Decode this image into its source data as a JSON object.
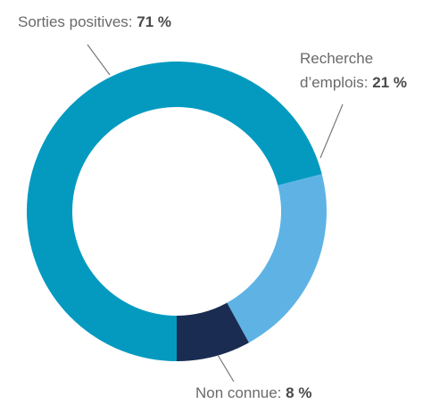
{
  "chart_data": {
    "type": "pie",
    "variant": "donut",
    "slices": [
      {
        "label": "Sorties positives",
        "value": 71,
        "display": "71 %",
        "color": "#049ac0"
      },
      {
        "label": "Recherche d’emplois",
        "label_lines": [
          "Recherche",
          "d’emplois:"
        ],
        "value": 21,
        "display": "21 %",
        "color": "#5eb3e4"
      },
      {
        "label": "Non connue",
        "value": 8,
        "display": "8 %",
        "color": "#1b2c52"
      }
    ],
    "legend": "none",
    "labels": "outside with leader lines"
  },
  "text": {
    "sorties_label": "Sorties positives:",
    "sorties_value": "71 %",
    "recherche_line1": "Recherche",
    "recherche_line2": "d’emplois:",
    "recherche_value": "21 %",
    "nonconnue_label": "Non connue:",
    "nonconnue_value": "8 %"
  }
}
